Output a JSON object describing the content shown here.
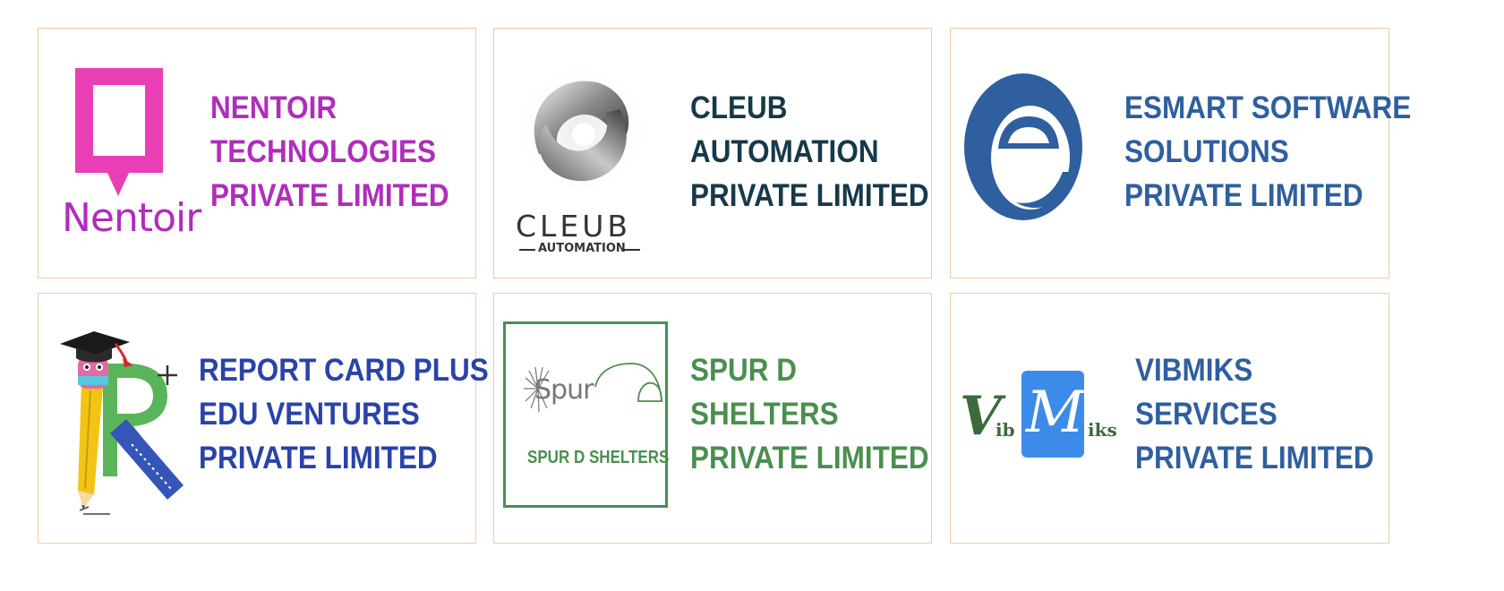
{
  "companies": [
    {
      "name_lines": [
        "NENTOIR",
        "TECHNOLOGIES",
        "PRIVATE LIMITED"
      ],
      "color": "#b02dbc",
      "logo": {
        "icon": "nentoir-speech-bubble-logo",
        "wordmark": "Nentoir",
        "brand_colors": [
          "#e93fb5",
          "#b02dbc"
        ]
      }
    },
    {
      "name_lines": [
        "CLEUB",
        "AUTOMATION",
        "PRIVATE LIMITED"
      ],
      "color": "#16394a",
      "logo": {
        "icon": "cleub-silver-swirl-logo",
        "wordmark": "CLEUB",
        "sub_wordmark": "AUTOMATION",
        "brand_colors": [
          "#a8a8a8",
          "#333333"
        ]
      }
    },
    {
      "name_lines": [
        "ESMART SOFTWARE",
        "SOLUTIONS",
        "PRIVATE LIMITED"
      ],
      "color": "#2f5f9e",
      "logo": {
        "icon": "esmart-letter-e-logo",
        "brand_colors": [
          "#2f5f9e"
        ]
      }
    },
    {
      "name_lines": [
        "REPORT CARD PLUS",
        "EDU VENTURES",
        "PRIVATE LIMITED"
      ],
      "color": "#2a43a8",
      "logo": {
        "icon": "report-card-pencil-graduation-cap-logo",
        "brand_colors": [
          "#f2c514",
          "#5ab55a",
          "#3556b8",
          "#e36aa5"
        ]
      }
    },
    {
      "name_lines": [
        "SPUR D",
        "SHELTERS",
        "PRIVATE LIMITED"
      ],
      "color": "#4a8f4f",
      "logo": {
        "icon": "spur-d-shelters-dome-logo",
        "wordmark": "Spur",
        "sub_wordmark": "SPUR D SHELTERS",
        "brand_colors": [
          "#4a8f4f"
        ]
      }
    },
    {
      "name_lines": [
        "VIBMIKS",
        "SERVICES",
        "PRIVATE LIMITED"
      ],
      "color": "#2f5f9e",
      "logo": {
        "icon": "vibmiks-blue-tile-logo",
        "wordmark_left_big": "V",
        "wordmark_left_small": "ib",
        "tile_letter": "M",
        "wordmark_right_small": "iks",
        "brand_colors": [
          "#3d8be8",
          "#3b6b3d"
        ]
      }
    }
  ]
}
